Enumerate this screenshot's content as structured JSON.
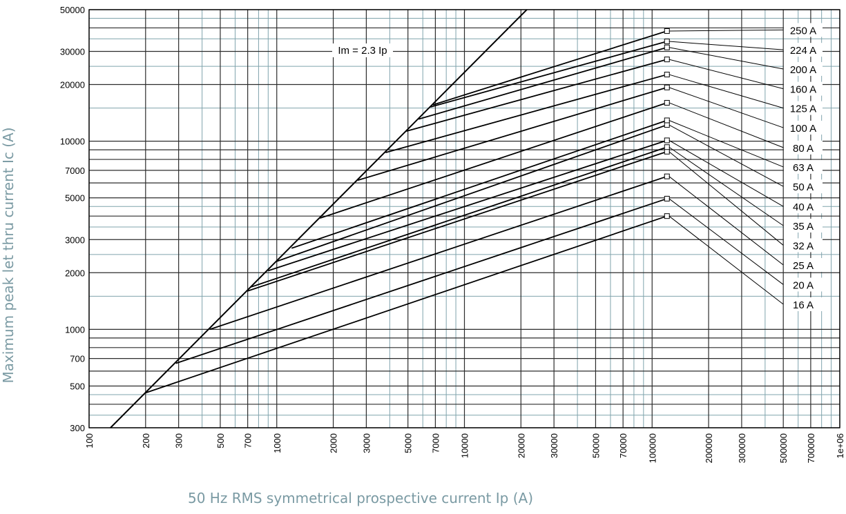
{
  "chart_data": {
    "type": "line",
    "title": "",
    "xlabel": "50 Hz RMS symmetrical prospective current Ip (A)",
    "ylabel": "Maximum peak let thru current Ic (A)",
    "x_scale": "log",
    "y_scale": "log",
    "xlim": [
      100,
      1000000
    ],
    "ylim": [
      300,
      50000
    ],
    "x_ticks": [
      100,
      200,
      300,
      500,
      700,
      1000,
      2000,
      3000,
      5000,
      7000,
      10000,
      20000,
      30000,
      50000,
      70000,
      100000,
      200000,
      300000,
      500000,
      700000,
      1000000
    ],
    "x_tick_labels": [
      "100",
      "200",
      "300",
      "500",
      "700",
      "1000",
      "2000",
      "3000",
      "5000",
      "7000",
      "10000",
      "20000",
      "30000",
      "50000",
      "70000",
      "100000",
      "200000",
      "300000",
      "500000",
      "700000",
      "1e+06"
    ],
    "y_ticks": [
      300,
      500,
      700,
      1000,
      2000,
      3000,
      5000,
      7000,
      10000,
      20000,
      30000,
      50000
    ],
    "y_tick_labels": [
      "300",
      "500",
      "700",
      "1000",
      "2000",
      "3000",
      "5000",
      "7000",
      "10000",
      "20000",
      "30000",
      "50000"
    ],
    "grid": true,
    "limit_line": {
      "label": "Im = 2.3 Ip",
      "x": [
        130,
        21500
      ],
      "y": [
        300,
        50000
      ]
    },
    "series": [
      {
        "name": "16 A",
        "start": [
          200,
          460
        ],
        "end": [
          120000,
          4000
        ]
      },
      {
        "name": "20 A",
        "start": [
          290,
          660
        ],
        "end": [
          120000,
          4950
        ]
      },
      {
        "name": "25 A",
        "start": [
          440,
          1000
        ],
        "end": [
          120000,
          6500
        ]
      },
      {
        "name": "32 A",
        "start": [
          700,
          1600
        ],
        "end": [
          120000,
          8800
        ]
      },
      {
        "name": "35 A",
        "start": [
          730,
          1680
        ],
        "end": [
          120000,
          9300
        ]
      },
      {
        "name": "40 A",
        "start": [
          900,
          2050
        ],
        "end": [
          120000,
          10100
        ]
      },
      {
        "name": "50 A",
        "start": [
          1000,
          2300
        ],
        "end": [
          120000,
          12200
        ]
      },
      {
        "name": "63 A",
        "start": [
          1200,
          2700
        ],
        "end": [
          120000,
          12900
        ]
      },
      {
        "name": "80 A",
        "start": [
          1700,
          3900
        ],
        "end": [
          120000,
          16000
        ]
      },
      {
        "name": "100 A",
        "start": [
          2700,
          6200
        ],
        "end": [
          120000,
          19300
        ]
      },
      {
        "name": "125 A",
        "start": [
          3800,
          8700
        ],
        "end": [
          120000,
          22600
        ]
      },
      {
        "name": "160 A",
        "start": [
          4900,
          11300
        ],
        "end": [
          120000,
          27200
        ]
      },
      {
        "name": "200 A",
        "start": [
          5700,
          13100
        ],
        "end": [
          120000,
          31500
        ]
      },
      {
        "name": "224 A",
        "start": [
          6600,
          15200
        ],
        "end": [
          120000,
          33900
        ]
      },
      {
        "name": "250 A",
        "start": [
          6800,
          15600
        ],
        "end": [
          120000,
          38500
        ]
      }
    ],
    "label_order": [
      "250 A",
      "224 A",
      "200 A",
      "160 A",
      "125 A",
      "100 A",
      "80 A",
      "63 A",
      "50 A",
      "40 A",
      "35 A",
      "32 A",
      "25 A",
      "20 A",
      "16 A"
    ],
    "label_leader_end_x": 500000,
    "label_leader_end_y": [
      39000,
      30600,
      24200,
      19000,
      15000,
      11800,
      9250,
      7300,
      5750,
      4500,
      3560,
      2800,
      2200,
      1730,
      1360
    ]
  }
}
